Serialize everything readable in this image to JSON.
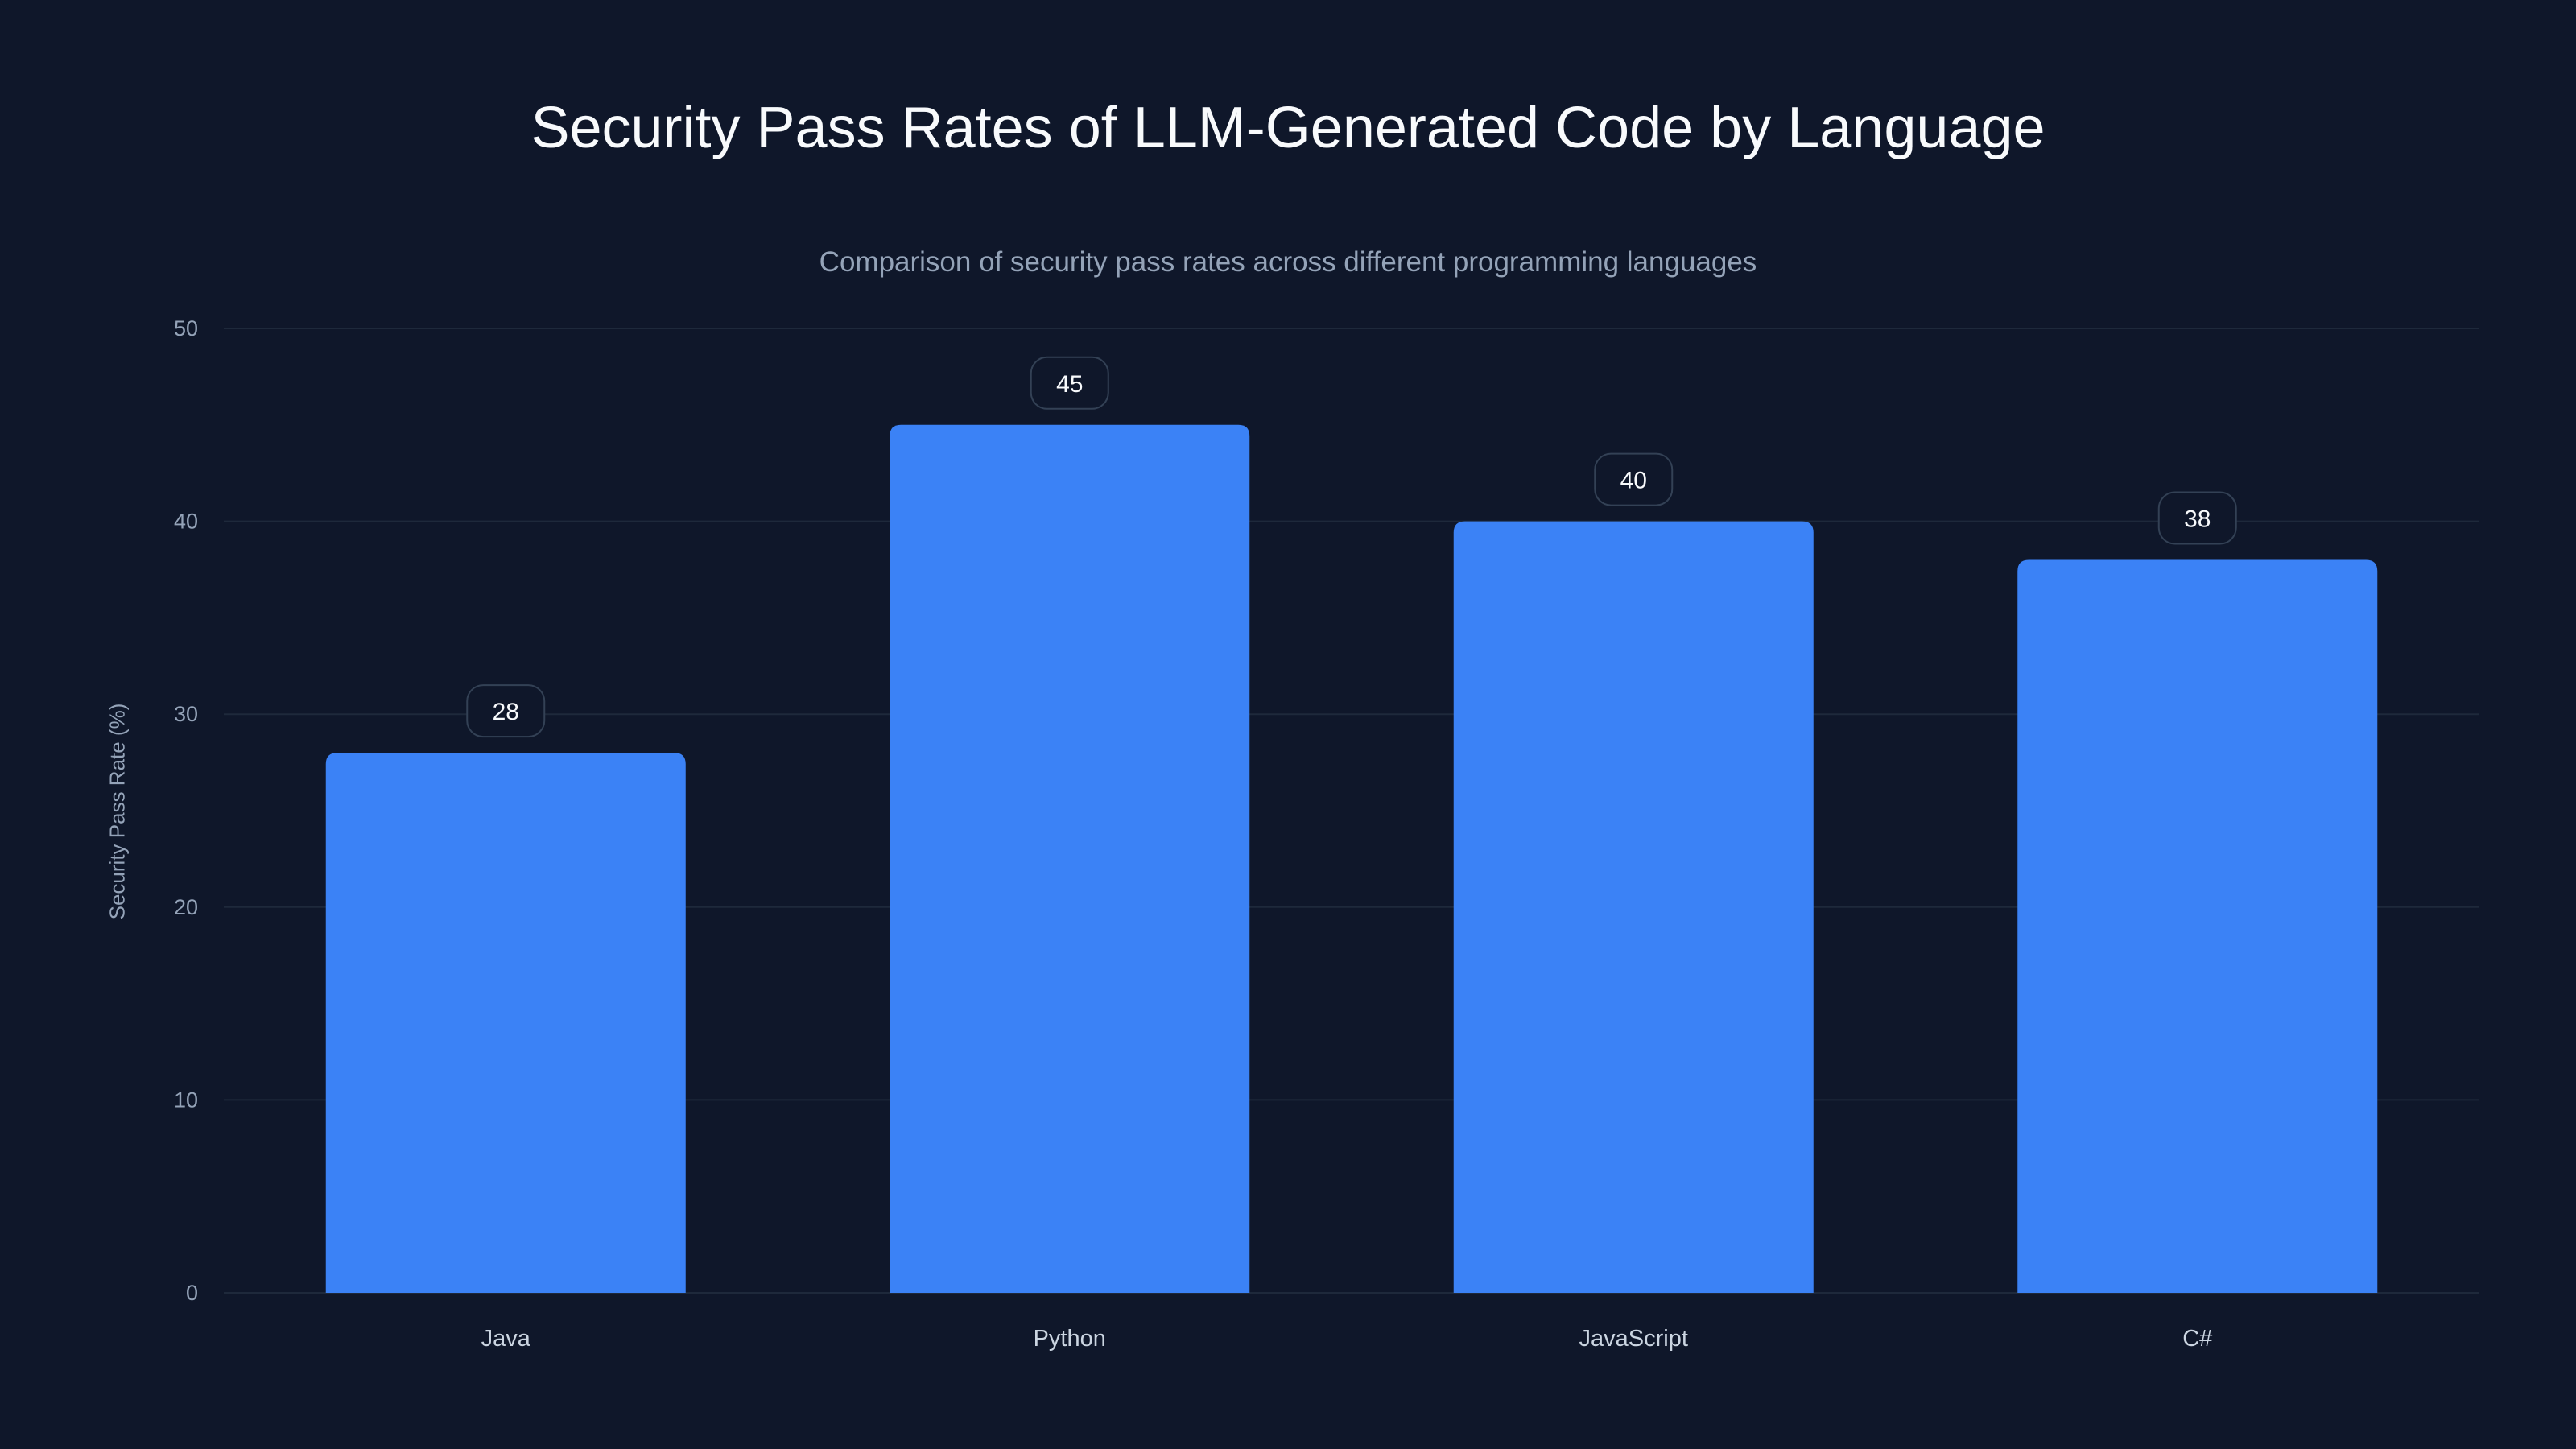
{
  "chart_data": {
    "type": "bar",
    "title": "Security Pass Rates of LLM-Generated Code by Language",
    "subtitle": "Comparison of security pass rates across different programming languages",
    "xlabel": "",
    "ylabel": "Security Pass Rate (%)",
    "categories": [
      "Java",
      "Python",
      "JavaScript",
      "C#"
    ],
    "values": [
      28,
      45,
      40,
      38
    ],
    "ylim": [
      0,
      50
    ],
    "yticks": [
      0,
      10,
      20,
      30,
      40,
      50
    ],
    "grid": true,
    "colors": {
      "bar": "#3b82f6",
      "background": "#0f172a",
      "grid": "#1e293b",
      "label_border": "#334155"
    }
  }
}
